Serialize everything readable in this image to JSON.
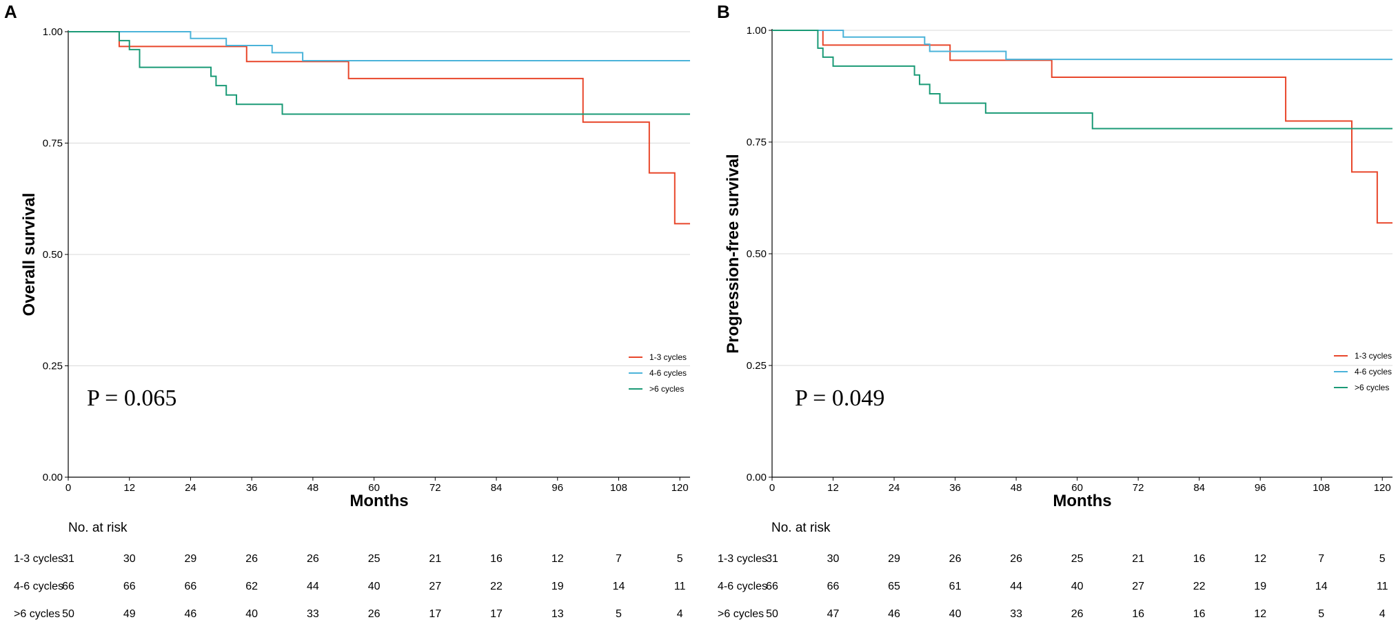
{
  "colors": {
    "series": [
      "#e8462a",
      "#4ab3d9",
      "#1a9a76"
    ],
    "grid": "#d9d9d9",
    "axis": "#000000"
  },
  "chart_data": [
    {
      "type": "line",
      "panel_label": "A",
      "title": "",
      "xlabel": "Months",
      "ylabel": "Overall survival",
      "xlim": [
        0,
        122
      ],
      "ylim": [
        0,
        1
      ],
      "x_ticks": [
        "0",
        "12",
        "24",
        "36",
        "48",
        "60",
        "72",
        "84",
        "96",
        "108",
        "120"
      ],
      "y_ticks": [
        "0.00",
        "0.25",
        "0.50",
        "0.75",
        "1.00"
      ],
      "grid": "horizontal",
      "legend_position": "right-lower",
      "annotation": "P = 0.065",
      "series": [
        {
          "name": "1-3 cycles",
          "x": [
            0,
            10,
            35,
            55,
            101,
            114,
            119,
            122
          ],
          "y": [
            1.0,
            0.967,
            0.933,
            0.895,
            0.797,
            0.683,
            0.569,
            0.569
          ]
        },
        {
          "name": "4-6 cycles",
          "x": [
            0,
            24,
            31,
            40,
            46,
            122
          ],
          "y": [
            1.0,
            0.985,
            0.969,
            0.953,
            0.935,
            0.935
          ]
        },
        {
          "name": ">6 cycles",
          "x": [
            0,
            10,
            12,
            14,
            28,
            29,
            31,
            33,
            42,
            122
          ],
          "y": [
            1.0,
            0.98,
            0.96,
            0.92,
            0.9,
            0.879,
            0.858,
            0.837,
            0.815,
            0.815
          ]
        }
      ],
      "risk_table": {
        "title": "No. at risk",
        "rows": [
          {
            "label": "1-3 cycles",
            "values": [
              "31",
              "30",
              "29",
              "26",
              "26",
              "25",
              "21",
              "16",
              "12",
              "7",
              "5"
            ]
          },
          {
            "label": "4-6 cycles",
            "values": [
              "66",
              "66",
              "66",
              "62",
              "44",
              "40",
              "27",
              "22",
              "19",
              "14",
              "11"
            ]
          },
          {
            "label": ">6 cycles",
            "values": [
              "50",
              "49",
              "46",
              "40",
              "33",
              "26",
              "17",
              "17",
              "13",
              "5",
              "4"
            ]
          }
        ]
      }
    },
    {
      "type": "line",
      "panel_label": "B",
      "title": "",
      "xlabel": "Months",
      "ylabel": "Progression-free survival",
      "xlim": [
        0,
        122
      ],
      "ylim": [
        0,
        1
      ],
      "x_ticks": [
        "0",
        "12",
        "24",
        "36",
        "48",
        "60",
        "72",
        "84",
        "96",
        "108",
        "120"
      ],
      "y_ticks": [
        "0.00",
        "0.25",
        "0.50",
        "0.75",
        "1.00"
      ],
      "grid": "horizontal",
      "legend_position": "right-lower",
      "annotation": "P = 0.049",
      "series": [
        {
          "name": "1-3 cycles",
          "x": [
            0,
            10,
            35,
            55,
            101,
            114,
            119,
            122
          ],
          "y": [
            1.0,
            0.967,
            0.933,
            0.895,
            0.797,
            0.683,
            0.569,
            0.569
          ]
        },
        {
          "name": "4-6 cycles",
          "x": [
            0,
            14,
            30,
            31,
            46,
            122
          ],
          "y": [
            1.0,
            0.985,
            0.969,
            0.953,
            0.935,
            0.935
          ]
        },
        {
          "name": ">6 cycles",
          "x": [
            0,
            9,
            10,
            12,
            28,
            29,
            31,
            33,
            42,
            63,
            122
          ],
          "y": [
            1.0,
            0.96,
            0.94,
            0.92,
            0.9,
            0.879,
            0.858,
            0.837,
            0.815,
            0.78,
            0.78
          ]
        }
      ],
      "risk_table": {
        "title": "No. at risk",
        "rows": [
          {
            "label": "1-3 cycles",
            "values": [
              "31",
              "30",
              "29",
              "26",
              "26",
              "25",
              "21",
              "16",
              "12",
              "7",
              "5"
            ]
          },
          {
            "label": "4-6 cycles",
            "values": [
              "66",
              "66",
              "65",
              "61",
              "44",
              "40",
              "27",
              "22",
              "19",
              "14",
              "11"
            ]
          },
          {
            "label": ">6 cycles",
            "values": [
              "50",
              "47",
              "46",
              "40",
              "33",
              "26",
              "16",
              "16",
              "12",
              "5",
              "4"
            ]
          }
        ]
      }
    }
  ]
}
